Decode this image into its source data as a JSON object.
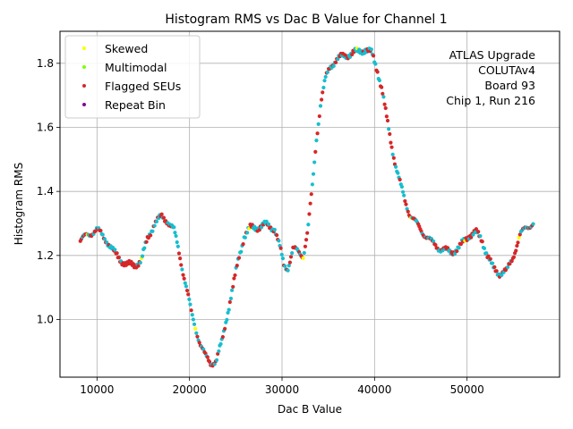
{
  "chart_data": {
    "type": "scatter",
    "title": "Histogram RMS vs Dac B Value for Channel 1",
    "xlabel": "Dac B Value",
    "ylabel": "Histogram RMS",
    "xlim": [
      6000,
      60000
    ],
    "ylim": [
      0.82,
      1.9
    ],
    "xticks": [
      10000,
      20000,
      30000,
      40000,
      50000
    ],
    "yticks": [
      1.0,
      1.2,
      1.4,
      1.6,
      1.8
    ],
    "grid": true,
    "legend_position": "top-left",
    "legend": [
      {
        "label": "Skewed",
        "color": "#ffff00"
      },
      {
        "label": "Multimodal",
        "color": "#7fff00"
      },
      {
        "label": "Flagged SEUs",
        "color": "#d62728"
      },
      {
        "label": "Repeat Bin",
        "color": "#8000a0"
      }
    ],
    "base_color": "#17becf",
    "annotation": [
      "ATLAS Upgrade",
      "COLUTAv4",
      "Board 93",
      "Chip 1, Run 216"
    ],
    "curve": [
      [
        8200,
        1.245
      ],
      [
        9000,
        1.265
      ],
      [
        10000,
        1.28
      ],
      [
        11000,
        1.25
      ],
      [
        11800,
        1.21
      ],
      [
        12500,
        1.19
      ],
      [
        13200,
        1.17
      ],
      [
        14000,
        1.17
      ],
      [
        14800,
        1.185
      ],
      [
        15500,
        1.255
      ],
      [
        16200,
        1.3
      ],
      [
        17000,
        1.32
      ],
      [
        17600,
        1.31
      ],
      [
        18300,
        1.28
      ],
      [
        18800,
        1.22
      ],
      [
        19300,
        1.15
      ],
      [
        19800,
        1.08
      ],
      [
        20200,
        1.02
      ],
      [
        20700,
        0.97
      ],
      [
        21200,
        0.92
      ],
      [
        21700,
        0.885
      ],
      [
        22300,
        0.865
      ],
      [
        22900,
        0.87
      ],
      [
        23500,
        0.93
      ],
      [
        24100,
        1.02
      ],
      [
        24700,
        1.1
      ],
      [
        25300,
        1.19
      ],
      [
        25900,
        1.26
      ],
      [
        26600,
        1.285
      ],
      [
        27500,
        1.29
      ],
      [
        28300,
        1.295
      ],
      [
        29200,
        1.285
      ],
      [
        29800,
        1.22
      ],
      [
        30200,
        1.17
      ],
      [
        30600,
        1.16
      ],
      [
        31200,
        1.22
      ],
      [
        31800,
        1.21
      ],
      [
        32300,
        1.2
      ],
      [
        32800,
        1.28
      ],
      [
        33300,
        1.42
      ],
      [
        33700,
        1.56
      ],
      [
        34200,
        1.68
      ],
      [
        34700,
        1.75
      ],
      [
        35200,
        1.79
      ],
      [
        35800,
        1.81
      ],
      [
        36500,
        1.82
      ],
      [
        37300,
        1.83
      ],
      [
        38200,
        1.835
      ],
      [
        39000,
        1.845
      ],
      [
        39700,
        1.83
      ],
      [
        40300,
        1.78
      ],
      [
        40800,
        1.72
      ],
      [
        41300,
        1.63
      ],
      [
        41800,
        1.55
      ],
      [
        42300,
        1.48
      ],
      [
        42800,
        1.42
      ],
      [
        43300,
        1.37
      ],
      [
        43800,
        1.33
      ],
      [
        44500,
        1.3
      ],
      [
        45300,
        1.27
      ],
      [
        46200,
        1.24
      ],
      [
        47200,
        1.22
      ],
      [
        48200,
        1.21
      ],
      [
        49200,
        1.225
      ],
      [
        50200,
        1.265
      ],
      [
        51000,
        1.27
      ],
      [
        51600,
        1.25
      ],
      [
        52200,
        1.2
      ],
      [
        52800,
        1.16
      ],
      [
        53500,
        1.145
      ],
      [
        54300,
        1.15
      ],
      [
        55000,
        1.2
      ],
      [
        55700,
        1.26
      ],
      [
        56400,
        1.29
      ],
      [
        57200,
        1.3
      ]
    ]
  }
}
